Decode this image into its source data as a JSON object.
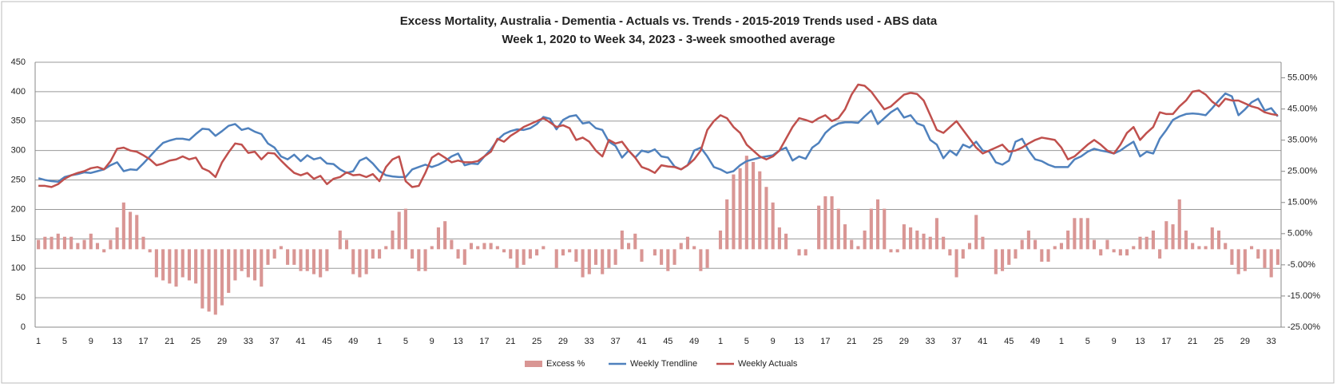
{
  "chart_data": {
    "type": "combo",
    "title": "Excess Mortality, Australia - Dementia - Actuals vs. Trends - 2015-2019 Trends used - ABS data",
    "subtitle": "Week 1, 2020 to Week 34, 2023 - 3-week smoothed average",
    "categories": [
      1,
      null,
      null,
      null,
      5,
      null,
      null,
      null,
      9,
      null,
      null,
      null,
      13,
      null,
      null,
      null,
      17,
      null,
      null,
      null,
      21,
      null,
      null,
      null,
      25,
      null,
      null,
      null,
      29,
      null,
      null,
      null,
      33,
      null,
      null,
      null,
      37,
      null,
      null,
      null,
      41,
      null,
      null,
      null,
      45,
      null,
      null,
      null,
      49,
      null,
      null,
      null,
      1,
      null,
      null,
      null,
      5,
      null,
      null,
      null,
      9,
      null,
      null,
      null,
      13,
      null,
      null,
      null,
      17,
      null,
      null,
      null,
      21,
      null,
      null,
      null,
      25,
      null,
      null,
      null,
      29,
      null,
      null,
      null,
      33,
      null,
      null,
      null,
      37,
      null,
      null,
      null,
      41,
      null,
      null,
      null,
      45,
      null,
      null,
      null,
      49,
      null,
      null,
      null,
      1,
      null,
      null,
      null,
      5,
      null,
      null,
      null,
      9,
      null,
      null,
      null,
      13,
      null,
      null,
      null,
      17,
      null,
      null,
      null,
      21,
      null,
      null,
      null,
      25,
      null,
      null,
      null,
      29,
      null,
      null,
      null,
      33,
      null,
      null,
      null,
      37,
      null,
      null,
      null,
      41,
      null,
      null,
      null,
      45,
      null,
      null,
      null,
      49,
      null,
      null,
      null,
      1,
      null,
      null,
      null,
      5,
      null,
      null,
      null,
      9,
      null,
      null,
      null,
      13,
      null,
      null,
      null,
      17,
      null,
      null,
      null,
      21,
      null,
      null,
      null,
      25,
      null,
      null,
      null,
      29,
      null,
      null,
      null,
      33,
      null
    ],
    "ylim": [
      0,
      450
    ],
    "yticks": [
      0,
      50,
      100,
      150,
      200,
      250,
      300,
      350,
      400,
      450
    ],
    "y2lim": [
      -25,
      60
    ],
    "y2ticks": [
      {
        "value": -25,
        "label": "-25.00%"
      },
      {
        "value": -15,
        "label": "-15.00%"
      },
      {
        "value": -5,
        "label": "-5.00%"
      },
      {
        "value": 5,
        "label": "5.00%"
      },
      {
        "value": 15,
        "label": "15.00%"
      },
      {
        "value": 25,
        "label": "25.00%"
      },
      {
        "value": 35,
        "label": "35.00%"
      },
      {
        "value": 45,
        "label": "45.00%"
      },
      {
        "value": 55,
        "label": "55.00%"
      }
    ],
    "grid": true,
    "legend": "bottom",
    "series": [
      {
        "name": "Excess %",
        "type": "bar",
        "axis": "y2",
        "color": "#d99694",
        "values": [
          3,
          4,
          4,
          5,
          4,
          4,
          2,
          3,
          5,
          2,
          -1,
          3,
          7,
          15,
          12,
          11,
          4,
          -1,
          -9,
          -10,
          -11,
          -12,
          -9,
          -10,
          -11,
          -19,
          -20,
          -21,
          -18,
          -14,
          -10,
          -7,
          -9,
          -10,
          -12,
          -5,
          -3,
          1,
          -5,
          -5,
          -7,
          -7,
          -8,
          -9,
          -7,
          0,
          6,
          3,
          -8,
          -9,
          -8,
          -3,
          -3,
          1,
          6,
          12,
          13,
          -3,
          -7,
          -7,
          1,
          7,
          9,
          3,
          -3,
          -5,
          2,
          1,
          2,
          2,
          1,
          -1,
          -3,
          -6,
          -5,
          -3,
          -2,
          1,
          0,
          -6,
          -2,
          -1,
          -4,
          -9,
          -8,
          -5,
          -8,
          -6,
          -5,
          6,
          2,
          5,
          -4,
          0,
          -2,
          -5,
          -7,
          -5,
          2,
          4,
          1,
          -7,
          -6,
          0,
          6,
          16,
          24,
          26,
          30,
          28,
          25,
          20,
          15,
          7,
          5,
          0,
          -2,
          -2,
          0,
          14,
          17,
          17,
          13,
          8,
          3,
          1,
          6,
          13,
          16,
          13,
          -1,
          -1,
          8,
          7,
          6,
          5,
          4,
          10,
          4,
          -2,
          -9,
          -3,
          2,
          11,
          4,
          0,
          -8,
          -7,
          -5,
          -3,
          3,
          6,
          3,
          -4,
          -4,
          1,
          2,
          6,
          10,
          10,
          10,
          3,
          -2,
          3,
          -1,
          -2,
          -2,
          1,
          4,
          4,
          6,
          -3,
          9,
          8,
          16,
          6,
          2,
          1,
          1,
          7,
          6,
          2,
          -5,
          -8,
          -7,
          1,
          -3,
          -6,
          -9,
          -5
        ]
      },
      {
        "name": "Weekly Trendline",
        "type": "line",
        "color": "#4f81bd",
        "values": [
          253,
          250,
          248,
          247,
          255,
          258,
          260,
          263,
          262,
          265,
          268,
          275,
          280,
          265,
          268,
          267,
          278,
          290,
          302,
          313,
          317,
          320,
          320,
          318,
          328,
          337,
          336,
          325,
          333,
          342,
          345,
          335,
          338,
          332,
          328,
          312,
          305,
          290,
          285,
          293,
          282,
          292,
          285,
          288,
          278,
          277,
          268,
          262,
          265,
          283,
          288,
          278,
          265,
          258,
          256,
          255,
          255,
          268,
          272,
          276,
          272,
          276,
          282,
          290,
          295,
          275,
          278,
          277,
          290,
          302,
          318,
          328,
          333,
          336,
          335,
          338,
          345,
          357,
          354,
          336,
          352,
          358,
          360,
          346,
          348,
          338,
          335,
          315,
          308,
          288,
          300,
          288,
          300,
          297,
          302,
          290,
          288,
          273,
          268,
          275,
          300,
          305,
          290,
          272,
          268,
          262,
          265,
          275,
          282,
          285,
          288,
          290,
          292,
          300,
          305,
          283,
          290,
          286,
          305,
          313,
          330,
          340,
          346,
          348,
          348,
          347,
          358,
          368,
          345,
          355,
          365,
          372,
          356,
          360,
          346,
          342,
          318,
          310,
          287,
          300,
          292,
          310,
          305,
          315,
          300,
          298,
          280,
          276,
          283,
          315,
          320,
          300,
          285,
          282,
          276,
          272,
          272,
          272,
          285,
          290,
          298,
          303,
          300,
          298,
          295,
          300,
          308,
          315,
          290,
          298,
          295,
          320,
          335,
          352,
          358,
          362,
          363,
          362,
          360,
          372,
          385,
          397,
          392,
          360,
          370,
          382,
          388,
          368,
          372,
          358
        ]
      },
      {
        "name": "Weekly Actuals",
        "type": "line",
        "color": "#c0504d",
        "values": [
          240,
          240,
          238,
          243,
          252,
          258,
          262,
          265,
          270,
          272,
          268,
          282,
          303,
          305,
          300,
          298,
          292,
          285,
          275,
          278,
          283,
          285,
          290,
          285,
          288,
          270,
          265,
          255,
          280,
          297,
          312,
          310,
          296,
          298,
          285,
          296,
          295,
          283,
          272,
          262,
          258,
          262,
          252,
          257,
          243,
          252,
          255,
          263,
          258,
          259,
          255,
          260,
          248,
          272,
          285,
          290,
          248,
          238,
          240,
          262,
          288,
          295,
          288,
          280,
          283,
          280,
          280,
          282,
          290,
          298,
          320,
          315,
          325,
          332,
          340,
          345,
          350,
          355,
          348,
          340,
          343,
          338,
          318,
          322,
          315,
          300,
          290,
          318,
          312,
          315,
          300,
          288,
          272,
          268,
          262,
          275,
          273,
          272,
          268,
          275,
          285,
          300,
          335,
          350,
          360,
          355,
          340,
          330,
          310,
          300,
          290,
          285,
          290,
          300,
          320,
          340,
          355,
          352,
          348,
          355,
          360,
          350,
          355,
          370,
          395,
          412,
          410,
          400,
          385,
          370,
          375,
          385,
          395,
          398,
          396,
          385,
          360,
          335,
          330,
          340,
          350,
          335,
          320,
          305,
          295,
          300,
          305,
          310,
          298,
          300,
          305,
          312,
          318,
          322,
          320,
          318,
          305,
          285,
          290,
          300,
          310,
          318,
          310,
          300,
          295,
          310,
          330,
          340,
          318,
          330,
          340,
          365,
          362,
          362,
          375,
          385,
          400,
          402,
          395,
          383,
          375,
          388,
          385,
          385,
          380,
          375,
          372,
          365,
          362,
          360
        ]
      }
    ]
  }
}
